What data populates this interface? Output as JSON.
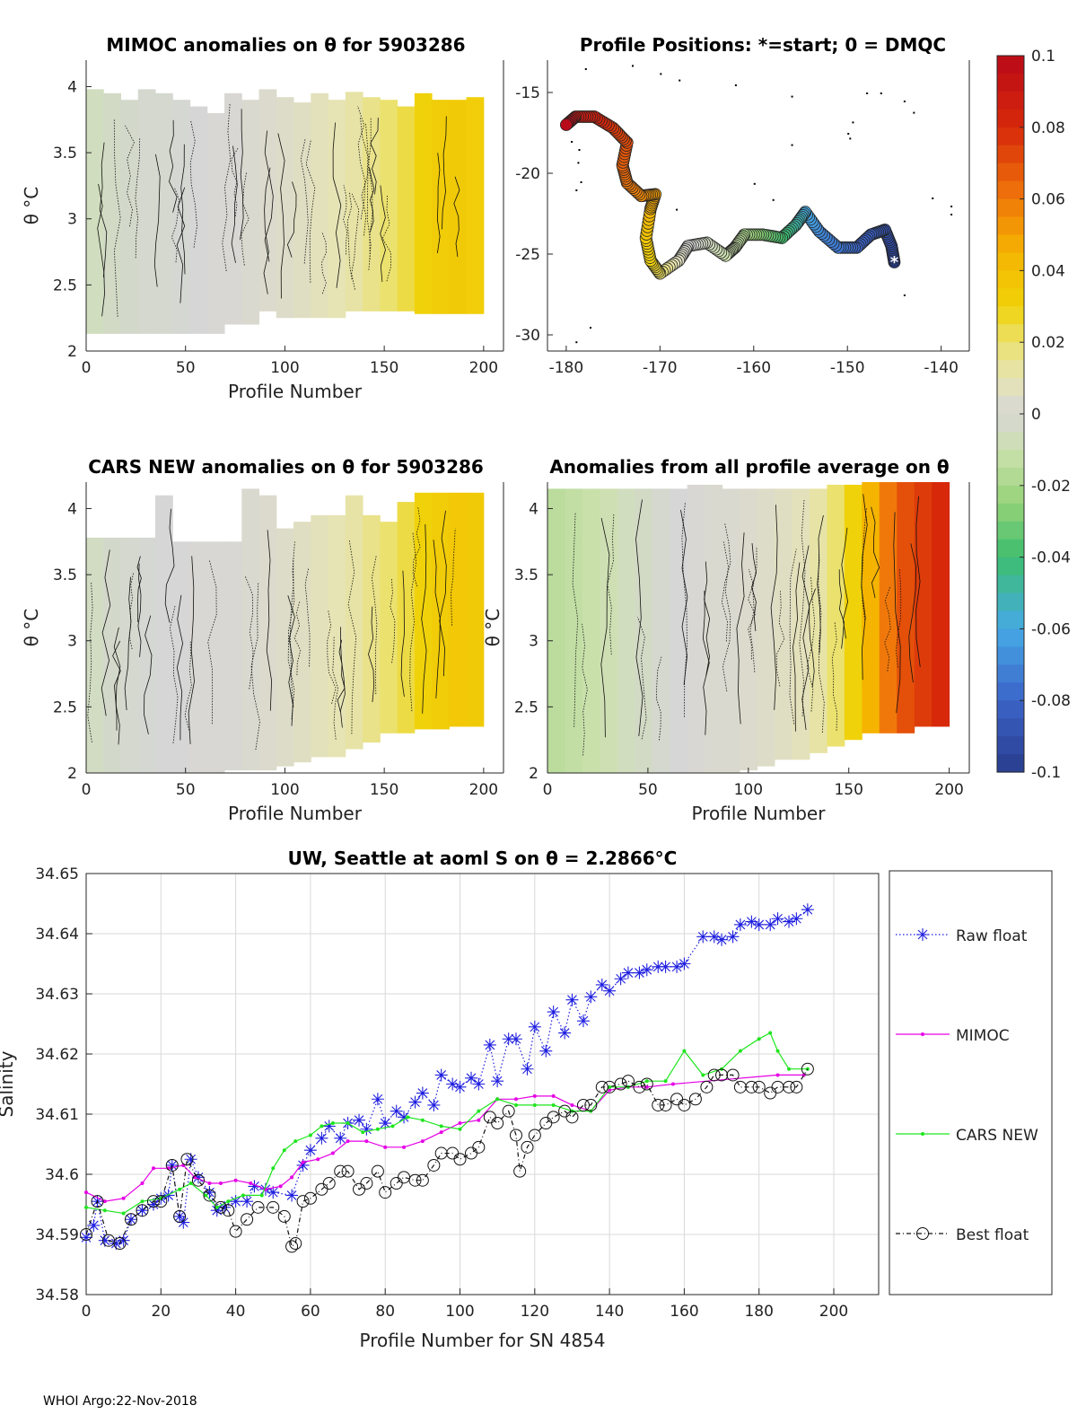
{
  "footer": "WHOI Argo:22-Nov-2018",
  "colors": {
    "raw": "#1f1fe0",
    "mimoc": "#e600e6",
    "cars": "#1ee61e",
    "best": "#111111"
  },
  "chart_data": [
    {
      "id": "mimoc",
      "type": "heatmap",
      "title": "MIMOC anomalies on θ  for 5903286",
      "xlabel": "Profile Number",
      "ylabel": "θ °C",
      "xlim": [
        0,
        210
      ],
      "ylim": [
        2,
        4.2
      ],
      "xticks": [
        0,
        50,
        100,
        150,
        200
      ],
      "yticks": [
        2,
        2.5,
        3,
        3.5,
        4
      ],
      "ticklabels_y": [
        "2",
        "2.5",
        "3",
        "3.5",
        "4"
      ],
      "top_theta": [
        3.98,
        3.95,
        3.9,
        3.98,
        3.95,
        3.9,
        3.85,
        3.8,
        3.95,
        3.9,
        3.98,
        3.92,
        3.88,
        3.95,
        3.9,
        3.96,
        3.92,
        3.9,
        3.85,
        3.95,
        3.9,
        3.9,
        3.92
      ],
      "bottom_theta": [
        2.13,
        2.13,
        2.13,
        2.13,
        2.13,
        2.13,
        2.13,
        2.13,
        2.2,
        2.2,
        2.3,
        2.25,
        2.25,
        2.25,
        2.25,
        2.3,
        2.3,
        2.3,
        2.3,
        2.28,
        2.28,
        2.28,
        2.28
      ],
      "anomaly": [
        -0.006,
        -0.004,
        -0.003,
        -0.002,
        -0.002,
        -0.001,
        0.0,
        0.001,
        0.001,
        0.002,
        0.003,
        0.004,
        0.006,
        0.008,
        0.01,
        0.012,
        0.016,
        0.02,
        0.024,
        0.03,
        0.033,
        0.034,
        0.032
      ],
      "gaps": [
        [
          161,
          165
        ]
      ]
    },
    {
      "id": "positions",
      "type": "scatter",
      "title": "Profile Positions: *=start; 0 = DMQC",
      "xlim": [
        -182,
        -137
      ],
      "ylim": [
        -31,
        -13
      ],
      "xticks": [
        -180,
        -170,
        -160,
        -150,
        -140
      ],
      "yticks": [
        -30,
        -25,
        -20,
        -15
      ],
      "ticklabels_y": [
        "-30",
        "-25",
        "-20",
        "-15"
      ],
      "track_lon": [
        -145,
        -145.3,
        -146,
        -147.5,
        -149,
        -151,
        -153,
        -154.5,
        -155.5,
        -157,
        -159,
        -161,
        -162,
        -163,
        -165,
        -167,
        -168,
        -170,
        -171,
        -171.5,
        -171,
        -170.5,
        -172,
        -173.5,
        -174,
        -173.5,
        -175,
        -177,
        -179,
        -180
      ],
      "track_lat": [
        -25.5,
        -24.5,
        -23.5,
        -23.8,
        -24.6,
        -24.6,
        -23.6,
        -22.4,
        -23.2,
        -24,
        -23.8,
        -23.8,
        -24.6,
        -25.1,
        -24.3,
        -24.5,
        -25.4,
        -26.2,
        -25.4,
        -24,
        -22.2,
        -21.3,
        -21.4,
        -20.6,
        -19.5,
        -18.1,
        -17.2,
        -16.5,
        -16.5,
        -17
      ],
      "track_anomaly": [
        -0.1,
        -0.095,
        -0.09,
        -0.085,
        -0.08,
        -0.075,
        -0.07,
        -0.06,
        -0.05,
        -0.04,
        -0.03,
        -0.02,
        -0.012,
        -0.01,
        -0.005,
        0.0,
        0.005,
        0.02,
        0.03,
        0.035,
        0.045,
        0.05,
        0.055,
        0.06,
        0.065,
        0.07,
        0.075,
        0.085,
        0.09,
        0.1
      ],
      "climatology_points": [
        [
          -179.8,
          -17.2
        ],
        [
          -179.5,
          -18
        ],
        [
          -178.7,
          -18.5
        ],
        [
          -178.8,
          -19.3
        ],
        [
          -178.5,
          -20.5
        ],
        [
          -179,
          -21
        ],
        [
          -178,
          -13.5
        ],
        [
          -173,
          -13.3
        ],
        [
          -170,
          -13.8
        ],
        [
          -168,
          -14.2
        ],
        [
          -162,
          -14.5
        ],
        [
          -156,
          -15.2
        ],
        [
          -148,
          -15
        ],
        [
          -146.5,
          -15
        ],
        [
          -144,
          -15.5
        ],
        [
          -143,
          -16.2
        ],
        [
          -149.5,
          -16.8
        ],
        [
          -150,
          -17.5
        ],
        [
          -149.8,
          -17.8
        ],
        [
          -156,
          -18.2
        ],
        [
          -160,
          -20.6
        ],
        [
          -158,
          -21.6
        ],
        [
          -141,
          -21.5
        ],
        [
          -139,
          -22
        ],
        [
          -139,
          -22.5
        ],
        [
          -177.5,
          -29.5
        ],
        [
          -179,
          -30.4
        ],
        [
          -178.4,
          -16.2
        ],
        [
          -144,
          -27.5
        ],
        [
          -168.3,
          -22.2
        ]
      ]
    },
    {
      "id": "colorbar",
      "type": "colorbar",
      "range": [
        -0.1,
        0.1
      ],
      "tick_values": [
        0.1,
        0.08,
        0.06,
        0.04,
        0.02,
        0,
        -0.02,
        -0.04,
        -0.06,
        -0.08,
        -0.1
      ],
      "tick_labels": [
        "0.1",
        "0.08",
        "0.06",
        "0.04",
        "0.02",
        "0",
        "-0.02",
        "-0.04",
        "-0.06",
        "-0.08",
        "-0.1"
      ]
    },
    {
      "id": "cars",
      "type": "heatmap",
      "title": "CARS NEW anomalies on θ for 5903286",
      "xlabel": "Profile Number",
      "ylabel": "θ °C",
      "xlim": [
        0,
        210
      ],
      "ylim": [
        2,
        4.2
      ],
      "xticks": [
        0,
        50,
        100,
        150,
        200
      ],
      "yticks": [
        2,
        2.5,
        3,
        3.5,
        4
      ],
      "ticklabels_y": [
        "2",
        "2.5",
        "3",
        "3.5",
        "4"
      ],
      "top_theta": [
        3.78,
        3.78,
        3.78,
        3.78,
        4.1,
        3.75,
        3.75,
        3.75,
        3.75,
        4.15,
        4.1,
        3.85,
        3.9,
        3.95,
        3.95,
        4.1,
        3.95,
        3.9,
        4.05,
        4.12,
        4.12,
        4.12,
        4.12
      ],
      "bottom_theta": [
        2.0,
        2.0,
        2.0,
        2.0,
        2.0,
        2.0,
        2.0,
        2.0,
        2.02,
        2.02,
        2.02,
        2.05,
        2.08,
        2.12,
        2.12,
        2.18,
        2.23,
        2.3,
        2.3,
        2.33,
        2.33,
        2.35,
        2.35
      ],
      "anomaly": [
        -0.005,
        -0.003,
        -0.002,
        -0.001,
        0.0,
        0.0,
        0.001,
        0.001,
        0.001,
        0.002,
        0.003,
        0.004,
        0.006,
        0.008,
        0.01,
        0.012,
        0.016,
        0.02,
        0.024,
        0.03,
        0.033,
        0.035,
        0.034
      ],
      "gaps": []
    },
    {
      "id": "allavg",
      "type": "heatmap",
      "title": "Anomalies from all profile average on θ",
      "xlabel": "Profile Number",
      "ylabel": "θ °C",
      "xlim": [
        0,
        210
      ],
      "ylim": [
        2,
        4.2
      ],
      "xticks": [
        0,
        50,
        100,
        150,
        200
      ],
      "yticks": [
        2,
        2.5,
        3,
        3.5,
        4
      ],
      "ticklabels_y": [
        "2",
        "2.5",
        "3",
        "3.5",
        "4"
      ],
      "top_theta": [
        4.15,
        4.15,
        4.15,
        4.15,
        4.15,
        4.15,
        4.15,
        4.15,
        4.18,
        4.18,
        4.15,
        4.15,
        4.15,
        4.15,
        4.15,
        4.15,
        4.18,
        4.18,
        4.2,
        4.2,
        4.2,
        4.2,
        4.2
      ],
      "bottom_theta": [
        2.0,
        2.0,
        2.0,
        2.0,
        2.0,
        2.0,
        2.0,
        2.0,
        2.0,
        2.0,
        2.0,
        2.02,
        2.05,
        2.1,
        2.1,
        2.15,
        2.2,
        2.25,
        2.3,
        2.3,
        2.3,
        2.35,
        2.35
      ],
      "anomaly": [
        -0.015,
        -0.013,
        -0.011,
        -0.009,
        -0.006,
        -0.004,
        -0.002,
        0.0,
        0.001,
        0.002,
        0.002,
        0.003,
        0.004,
        0.006,
        0.008,
        0.012,
        0.02,
        0.03,
        0.045,
        0.06,
        0.07,
        0.075,
        0.08
      ],
      "gaps": []
    },
    {
      "id": "salinity",
      "type": "line",
      "title": "UW, Seattle at aoml S on θ = 2.2866°C",
      "xlabel": "Profile Number for SN 4854",
      "ylabel": "Salinity",
      "xlim": [
        0,
        212
      ],
      "ylim": [
        34.58,
        34.65
      ],
      "xticks": [
        0,
        20,
        40,
        60,
        80,
        100,
        120,
        140,
        160,
        180,
        200
      ],
      "yticks": [
        34.58,
        34.59,
        34.6,
        34.61,
        34.62,
        34.63,
        34.64,
        34.65
      ],
      "ticklabels_y": [
        "34.58",
        "34.59",
        "34.6",
        "34.61",
        "34.62",
        "34.63",
        "34.64",
        "34.65"
      ],
      "legend": [
        "Raw float",
        "MIMOC",
        "CARS NEW",
        "Best float"
      ],
      "series": [
        {
          "name": "Raw float",
          "x": [
            0,
            2,
            3,
            5,
            8,
            10,
            12,
            15,
            18,
            20,
            22,
            23,
            25,
            26,
            28,
            30,
            33,
            35,
            37,
            40,
            43,
            45,
            48,
            50,
            55,
            58,
            60,
            63,
            65,
            68,
            70,
            73,
            75,
            78,
            80,
            83,
            85,
            88,
            90,
            93,
            95,
            98,
            100,
            103,
            105,
            108,
            110,
            113,
            115,
            118,
            120,
            123,
            125,
            128,
            130,
            133,
            135,
            138,
            140,
            143,
            145,
            148,
            150,
            153,
            155,
            158,
            160,
            165,
            168,
            170,
            173,
            175,
            178,
            180,
            183,
            185,
            188,
            190,
            193
          ],
          "y": [
            34.5895,
            34.5915,
            34.5955,
            34.589,
            34.5885,
            34.589,
            34.5925,
            34.594,
            34.595,
            34.596,
            34.5965,
            34.6015,
            34.593,
            34.592,
            34.6025,
            34.5995,
            34.597,
            34.594,
            34.5945,
            34.5955,
            34.5955,
            34.598,
            34.5975,
            34.597,
            34.5965,
            34.6015,
            34.604,
            34.606,
            34.608,
            34.606,
            34.6085,
            34.609,
            34.6075,
            34.6125,
            34.6085,
            34.6105,
            34.6095,
            34.612,
            34.6135,
            34.6115,
            34.6165,
            34.615,
            34.6145,
            34.616,
            34.615,
            34.6215,
            34.6155,
            34.6225,
            34.6225,
            34.6175,
            34.6245,
            34.6205,
            34.627,
            34.6235,
            34.629,
            34.6255,
            34.6295,
            34.6315,
            34.6305,
            34.6325,
            34.6335,
            34.6335,
            34.634,
            34.6345,
            34.6345,
            34.6345,
            34.635,
            34.6395,
            34.6395,
            34.639,
            34.6395,
            34.6415,
            34.642,
            34.6415,
            34.6415,
            34.6425,
            34.642,
            34.6425,
            34.644
          ]
        },
        {
          "name": "MIMOC",
          "x": [
            0,
            5,
            10,
            15,
            18,
            22,
            26,
            29,
            33,
            36,
            40,
            44,
            48,
            52,
            55,
            58,
            62,
            66,
            70,
            75,
            80,
            85,
            90,
            95,
            100,
            105,
            110,
            115,
            120,
            125,
            130,
            135,
            140,
            145,
            150,
            157,
            185,
            192
          ],
          "y": [
            34.597,
            34.5955,
            34.596,
            34.5985,
            34.601,
            34.601,
            34.6015,
            34.5995,
            34.5985,
            34.5985,
            34.599,
            34.5985,
            34.5975,
            34.598,
            34.5995,
            34.602,
            34.6025,
            34.6035,
            34.6055,
            34.6055,
            34.6045,
            34.6045,
            34.6055,
            34.607,
            34.6085,
            34.609,
            34.6125,
            34.6125,
            34.613,
            34.613,
            34.6115,
            34.6105,
            34.614,
            34.6145,
            34.6145,
            34.615,
            34.6165,
            34.6165
          ]
        },
        {
          "name": "CARS NEW",
          "x": [
            0,
            5,
            10,
            15,
            20,
            25,
            28,
            32,
            35,
            38,
            42,
            47,
            50,
            53,
            56,
            60,
            63,
            66,
            70,
            74,
            78,
            82,
            86,
            90,
            95,
            100,
            105,
            110,
            115,
            120,
            125,
            130,
            135,
            140,
            145,
            150,
            155,
            160,
            165,
            170,
            175,
            180,
            183,
            185,
            188,
            193
          ],
          "y": [
            34.5945,
            34.594,
            34.5935,
            34.5955,
            34.596,
            34.5975,
            34.5985,
            34.5965,
            34.5945,
            34.5955,
            34.5965,
            34.5965,
            34.601,
            34.604,
            34.6055,
            34.6065,
            34.608,
            34.6085,
            34.6085,
            34.607,
            34.6075,
            34.608,
            34.6095,
            34.609,
            34.608,
            34.6075,
            34.6105,
            34.6125,
            34.6115,
            34.6115,
            34.6115,
            34.6105,
            34.6105,
            34.6145,
            34.6145,
            34.6155,
            34.6155,
            34.6205,
            34.6165,
            34.6175,
            34.6205,
            34.6225,
            34.6235,
            34.6205,
            34.6175,
            34.6175
          ]
        },
        {
          "name": "Best float",
          "x": [
            0,
            3,
            6,
            9,
            12,
            15,
            18,
            20,
            23,
            25,
            27,
            30,
            33,
            36,
            38,
            40,
            43,
            46,
            50,
            53,
            55,
            56,
            58,
            60,
            63,
            65,
            68,
            70,
            73,
            75,
            78,
            80,
            83,
            85,
            88,
            90,
            93,
            95,
            98,
            100,
            103,
            105,
            108,
            110,
            113,
            115,
            116,
            118,
            120,
            123,
            125,
            128,
            130,
            133,
            135,
            138,
            140,
            143,
            145,
            148,
            150,
            153,
            155,
            158,
            160,
            163,
            166,
            168,
            170,
            173,
            175,
            178,
            180,
            183,
            185,
            188,
            190,
            193
          ],
          "y": [
            34.59,
            34.5955,
            34.589,
            34.5885,
            34.5925,
            34.594,
            34.5955,
            34.5955,
            34.6015,
            34.593,
            34.6025,
            34.599,
            34.5965,
            34.5945,
            34.594,
            34.5905,
            34.5925,
            34.5945,
            34.5945,
            34.593,
            34.588,
            34.5885,
            34.5955,
            34.596,
            34.5975,
            34.5985,
            34.6005,
            34.6005,
            34.5975,
            34.5985,
            34.6005,
            34.597,
            34.5985,
            34.5995,
            34.599,
            34.599,
            34.6015,
            34.6035,
            34.6035,
            34.6025,
            34.6035,
            34.6045,
            34.6095,
            34.6085,
            34.6105,
            34.6065,
            34.6005,
            34.6045,
            34.6065,
            34.6085,
            34.6095,
            34.6105,
            34.6095,
            34.6115,
            34.6115,
            34.6145,
            34.6145,
            34.615,
            34.6155,
            34.6145,
            34.615,
            34.6115,
            34.6115,
            34.6125,
            34.6115,
            34.6125,
            34.6145,
            34.6165,
            34.6165,
            34.6165,
            34.6145,
            34.6145,
            34.6145,
            34.6135,
            34.6145,
            34.6145,
            34.6145,
            34.6175
          ]
        }
      ]
    }
  ]
}
